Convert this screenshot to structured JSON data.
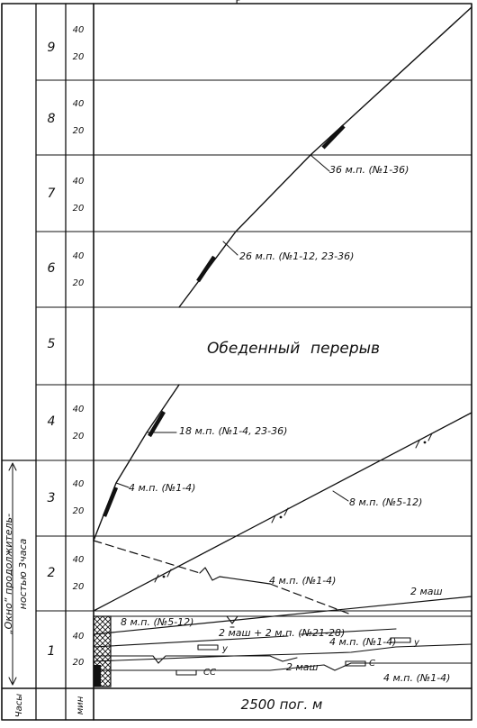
{
  "header": {
    "top_mark": "Р"
  },
  "side_note": {
    "line1": "„Окно“ продолжитель-",
    "line2": "ностью 3часа"
  },
  "columns": {
    "hours_label": "Часы",
    "minutes_label": "мин"
  },
  "x_axis_label": "2500 пог. м",
  "hours": [
    {
      "label": "1"
    },
    {
      "label": "2"
    },
    {
      "label": "3"
    },
    {
      "label": "4"
    },
    {
      "label": "5"
    },
    {
      "label": "6"
    },
    {
      "label": "7"
    },
    {
      "label": "8"
    },
    {
      "label": "9"
    }
  ],
  "minute_ticks": {
    "t20": "20",
    "t40": "40"
  },
  "lunch_break": {
    "word1": "Обеденный",
    "word2": "перерыв"
  },
  "lines": {
    "work_36": "36 м.п. (№1-36)",
    "work_26": "26 м.п. (№1-12, 23-36)",
    "work_18": "18 м.п. (№1-4, 23-36)",
    "work_4": "4 м.п. (№1-4)",
    "work_8": "8 м.п. (№5-12)",
    "dismantle_4": "4 м.п. (№1-4)",
    "machines_2": "2 маш",
    "block_8": "8 м.п. (№5-12)",
    "combo_2": "2 маш + 2 м.п. (№21-28)",
    "combo_4": "4 м.п. (№1-4)",
    "machines_2b": "2 маш",
    "bottom_4": "4 м.п. (№1-4)",
    "sym_u1": "у",
    "sym_u2": "у",
    "sym_cc": "СС",
    "sym_c": "С"
  }
}
